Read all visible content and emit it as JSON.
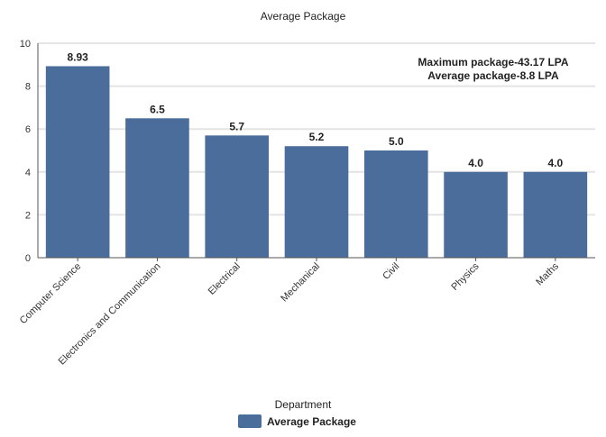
{
  "chart_data": {
    "type": "bar",
    "title": "Average Package",
    "xlabel": "Department",
    "ylabel": "",
    "ylim": [
      0,
      10
    ],
    "yticks": [
      0,
      2,
      4,
      6,
      8,
      10
    ],
    "categories": [
      "Computer Science",
      "Electronics and Communication",
      "Electrical",
      "Mechanical",
      "Civil",
      "Physics",
      "Maths"
    ],
    "series": [
      {
        "name": "Average Package",
        "values": [
          8.93,
          6.5,
          5.7,
          5.2,
          5.0,
          4.0,
          4.0
        ],
        "labels": [
          "8.93",
          "6.5",
          "5.7",
          "5.2",
          "5.0",
          "4.0",
          "4.0"
        ],
        "color": "#4a6d9c"
      }
    ],
    "annotation_lines": [
      "Maximum package-43.17 LPA",
      "Average package-8.8 LPA"
    ],
    "grid": true,
    "legend": "bottom-center"
  }
}
